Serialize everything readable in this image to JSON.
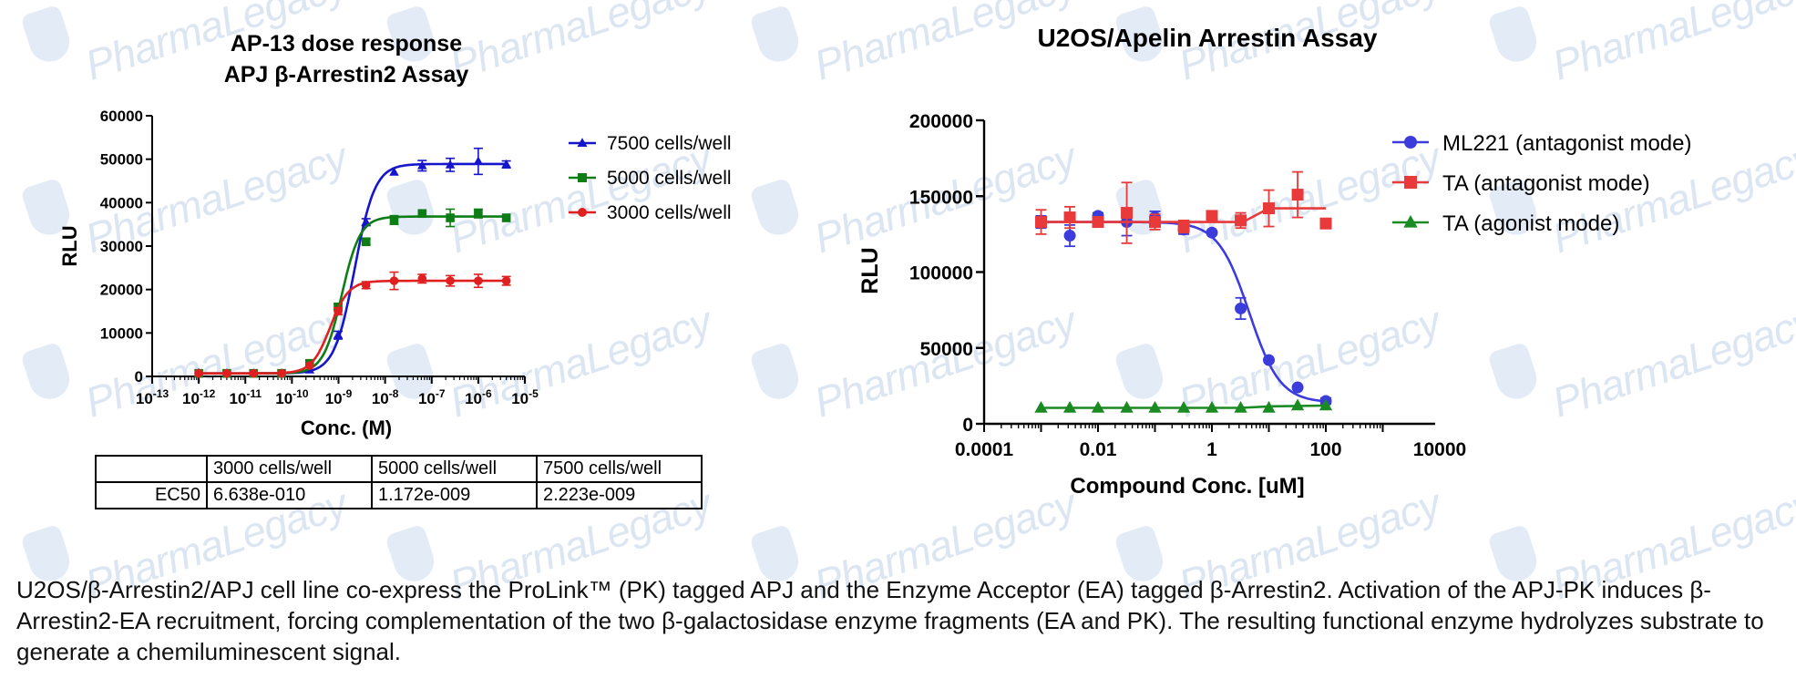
{
  "description": "U2OS/β-Arrestin2/APJ cell line co-express the ProLink™ (PK) tagged APJ and the Enzyme Acceptor (EA) tagged β-Arrestin2. Activation of the APJ-PK induces β-Arrestin2-EA recruitment, forcing complementation of the two β-galactosidase enzyme fragments (EA and PK). The resulting functional enzyme hydrolyzes substrate to generate a chemiluminescent signal.",
  "watermark_text": "PharmaLegacy",
  "table": {
    "headers": [
      "",
      "3000 cells/well",
      "5000 cells/well",
      "7500 cells/well"
    ],
    "rows": [
      [
        "EC50",
        "6.638e-010",
        "1.172e-009",
        "2.223e-009"
      ]
    ]
  },
  "chart_data": [
    {
      "type": "scatter",
      "title_lines": [
        "AP-13 dose response",
        "APJ β-Arrestin2 Assay"
      ],
      "xlabel": "Conc. (M)",
      "ylabel": "RLU",
      "x_scale": "log",
      "xlim": [
        1e-13,
        1e-05
      ],
      "ylim": [
        0,
        60000
      ],
      "x_ticks": [
        1e-13,
        1e-12,
        1e-11,
        1e-10,
        1e-09,
        1e-08,
        1e-07,
        1e-06,
        1e-05
      ],
      "x_tick_labels": [
        {
          "base": "10",
          "exp": "-13"
        },
        {
          "base": "10",
          "exp": "-12"
        },
        {
          "base": "10",
          "exp": "-11"
        },
        {
          "base": "10",
          "exp": "-10"
        },
        {
          "base": "10",
          "exp": "-9"
        },
        {
          "base": "10",
          "exp": "-8"
        },
        {
          "base": "10",
          "exp": "-7"
        },
        {
          "base": "10",
          "exp": "-6"
        },
        {
          "base": "10",
          "exp": "-5"
        }
      ],
      "y_ticks": [
        0,
        10000,
        20000,
        30000,
        40000,
        50000,
        60000
      ],
      "y_tick_labels": [
        "0",
        "10000",
        "20000",
        "30000",
        "40000",
        "50000",
        "60000"
      ],
      "grid": false,
      "legend_position": "right",
      "x": [
        1e-12,
        4e-12,
        1.5e-11,
        6e-11,
        2.4e-10,
        9.8e-10,
        3.9e-09,
        1.56e-08,
        6.25e-08,
        2.5e-07,
        1e-06,
        4e-06
      ],
      "series": [
        {
          "name": "7500 cells/well",
          "color": "#1515cc",
          "marker": "triangle",
          "values": [
            800,
            700,
            700,
            700,
            1500,
            9500,
            35500,
            47000,
            48500,
            48700,
            49500,
            48800
          ],
          "errors": [
            0,
            0,
            0,
            0,
            0,
            900,
            800,
            0,
            1200,
            1500,
            3000,
            800
          ],
          "fit": {
            "bottom": 700,
            "top": 48900,
            "ec50": 2.223e-09,
            "hill": 2.0
          }
        },
        {
          "name": "5000 cells/well",
          "color": "#0e7d16",
          "marker": "square",
          "values": [
            700,
            700,
            700,
            700,
            3000,
            16000,
            31000,
            36000,
            37500,
            36500,
            37500,
            36500
          ],
          "errors": [
            0,
            0,
            0,
            0,
            0,
            700,
            700,
            1000,
            0,
            2000,
            1000,
            0
          ],
          "fit": {
            "bottom": 700,
            "top": 36800,
            "ec50": 1.172e-09,
            "hill": 2.2
          }
        },
        {
          "name": "3000 cells/well",
          "color": "#e02020",
          "marker": "circle",
          "values": [
            700,
            700,
            700,
            700,
            2500,
            15000,
            21000,
            22000,
            22500,
            22000,
            22000,
            22000
          ],
          "errors": [
            0,
            0,
            0,
            0,
            0,
            800,
            800,
            2000,
            1000,
            1200,
            1500,
            1000
          ],
          "fit": {
            "bottom": 700,
            "top": 22000,
            "ec50": 6.638e-10,
            "hill": 2.2
          }
        }
      ]
    },
    {
      "type": "scatter",
      "title": "U2OS/Apelin Arrestin Assay",
      "xlabel": "Compound Conc. [uM]",
      "ylabel": "RLU",
      "x_scale": "log",
      "xlim": [
        0.0001,
        10000
      ],
      "ylim": [
        0,
        200000
      ],
      "x_ticks": [
        0.0001,
        0.01,
        1,
        100,
        10000
      ],
      "x_tick_labels": [
        "0.0001",
        "0.01",
        "1",
        "100",
        "10000"
      ],
      "y_ticks": [
        0,
        50000,
        100000,
        150000,
        200000
      ],
      "y_tick_labels": [
        "0",
        "50000",
        "100000",
        "150000",
        "200000"
      ],
      "grid": false,
      "legend_position": "top-right",
      "x": [
        0.01,
        0.03,
        0.1,
        0.3,
        1,
        3,
        10,
        30,
        100
      ],
      "series": [
        {
          "name": "ML221 (antagonist mode)",
          "color": "#3c3cdd",
          "marker": "circle",
          "values": [
            133000,
            124000,
            137000,
            133000,
            136000,
            128000,
            126000,
            76000,
            42000,
            24000,
            15000
          ],
          "x": [
            0.001,
            0.0032,
            0.01,
            0.032,
            0.1,
            0.32,
            1,
            3.2,
            10,
            32,
            100
          ],
          "errors": [
            4000,
            7000,
            2000,
            9000,
            4000,
            3000,
            0,
            7000,
            0,
            0,
            2000
          ],
          "fit": {
            "bottom": 14000,
            "top": 133000,
            "ic50": 4.5,
            "hill": -1.6
          }
        },
        {
          "name": "TA (antagonist mode)",
          "color": "#e8393b",
          "marker": "square",
          "values": [
            133000,
            136000,
            133000,
            139000,
            133000,
            130000,
            137000,
            134000,
            142000,
            151000,
            132000
          ],
          "x": [
            0.001,
            0.0032,
            0.01,
            0.032,
            0.1,
            0.32,
            1,
            3.2,
            10,
            32,
            100
          ],
          "errors": [
            8000,
            7000,
            3000,
            20000,
            5000,
            4000,
            0,
            5000,
            12000,
            15000,
            0
          ],
          "fit_line": [
            [
              0.001,
              133000
            ],
            [
              3.5,
              133000
            ],
            [
              10,
              142000
            ],
            [
              100,
              142000
            ]
          ]
        },
        {
          "name": "TA (agonist mode)",
          "color": "#1a8a23",
          "marker": "triangle",
          "values": [
            10500,
            10500,
            10500,
            10500,
            10500,
            10500,
            10500,
            10500,
            10500,
            12000,
            12000
          ],
          "x": [
            0.001,
            0.0032,
            0.01,
            0.032,
            0.1,
            0.32,
            1,
            3.2,
            10,
            32,
            100
          ],
          "errors": [
            0,
            0,
            0,
            0,
            0,
            0,
            0,
            0,
            0,
            0,
            0
          ],
          "fit_line": [
            [
              0.001,
              10500
            ],
            [
              3.2,
              10500
            ],
            [
              10,
              11500
            ],
            [
              100,
              12000
            ]
          ]
        }
      ]
    }
  ]
}
